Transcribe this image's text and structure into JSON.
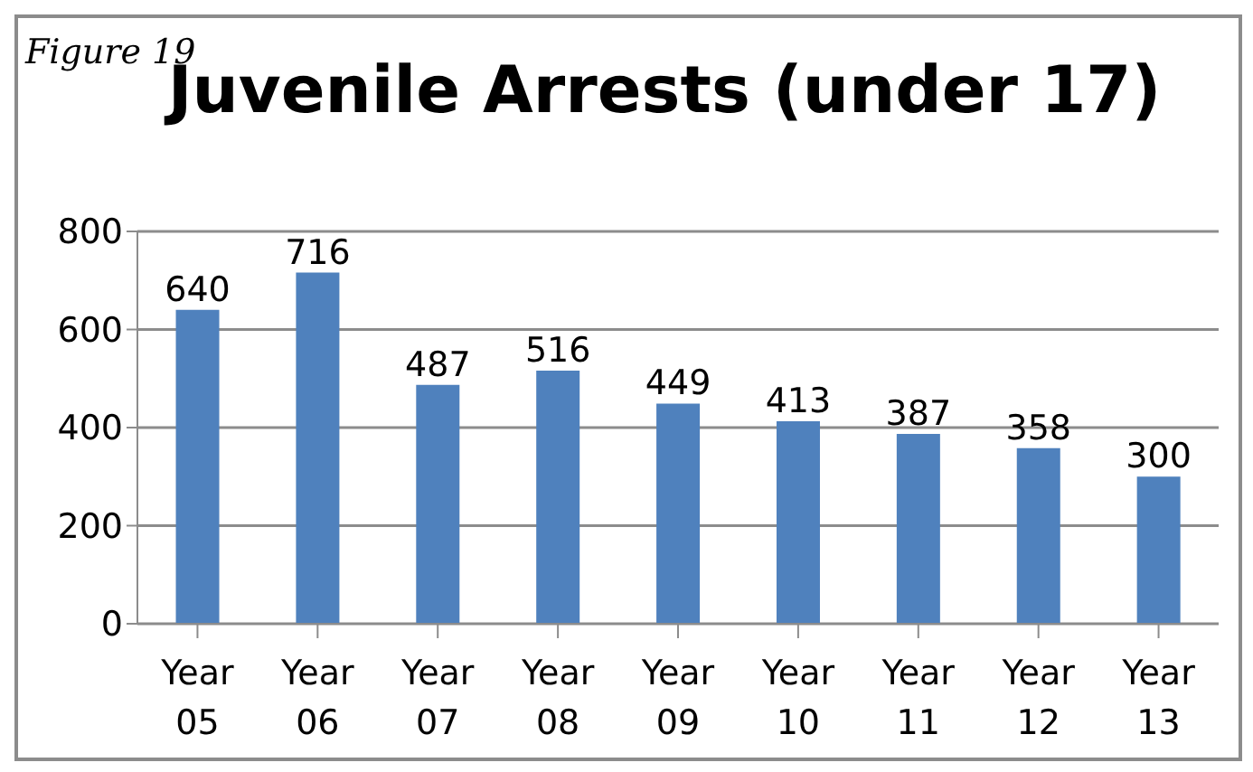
{
  "chart_data": {
    "type": "bar",
    "title": "Juvenile Arrests (under 17)",
    "annotations": [
      "Figure 19"
    ],
    "categories": [
      "Year 05",
      "Year 06",
      "Year 07",
      "Year 08",
      "Year 09",
      "Year 10",
      "Year 11",
      "Year 12",
      "Year 13"
    ],
    "values": [
      640,
      716,
      487,
      516,
      449,
      413,
      387,
      358,
      300
    ],
    "color": "#4f81bd",
    "ylim": [
      0,
      800
    ],
    "yticks": [
      0,
      200,
      400,
      600,
      800
    ],
    "grid": "y",
    "data_labels": true
  }
}
